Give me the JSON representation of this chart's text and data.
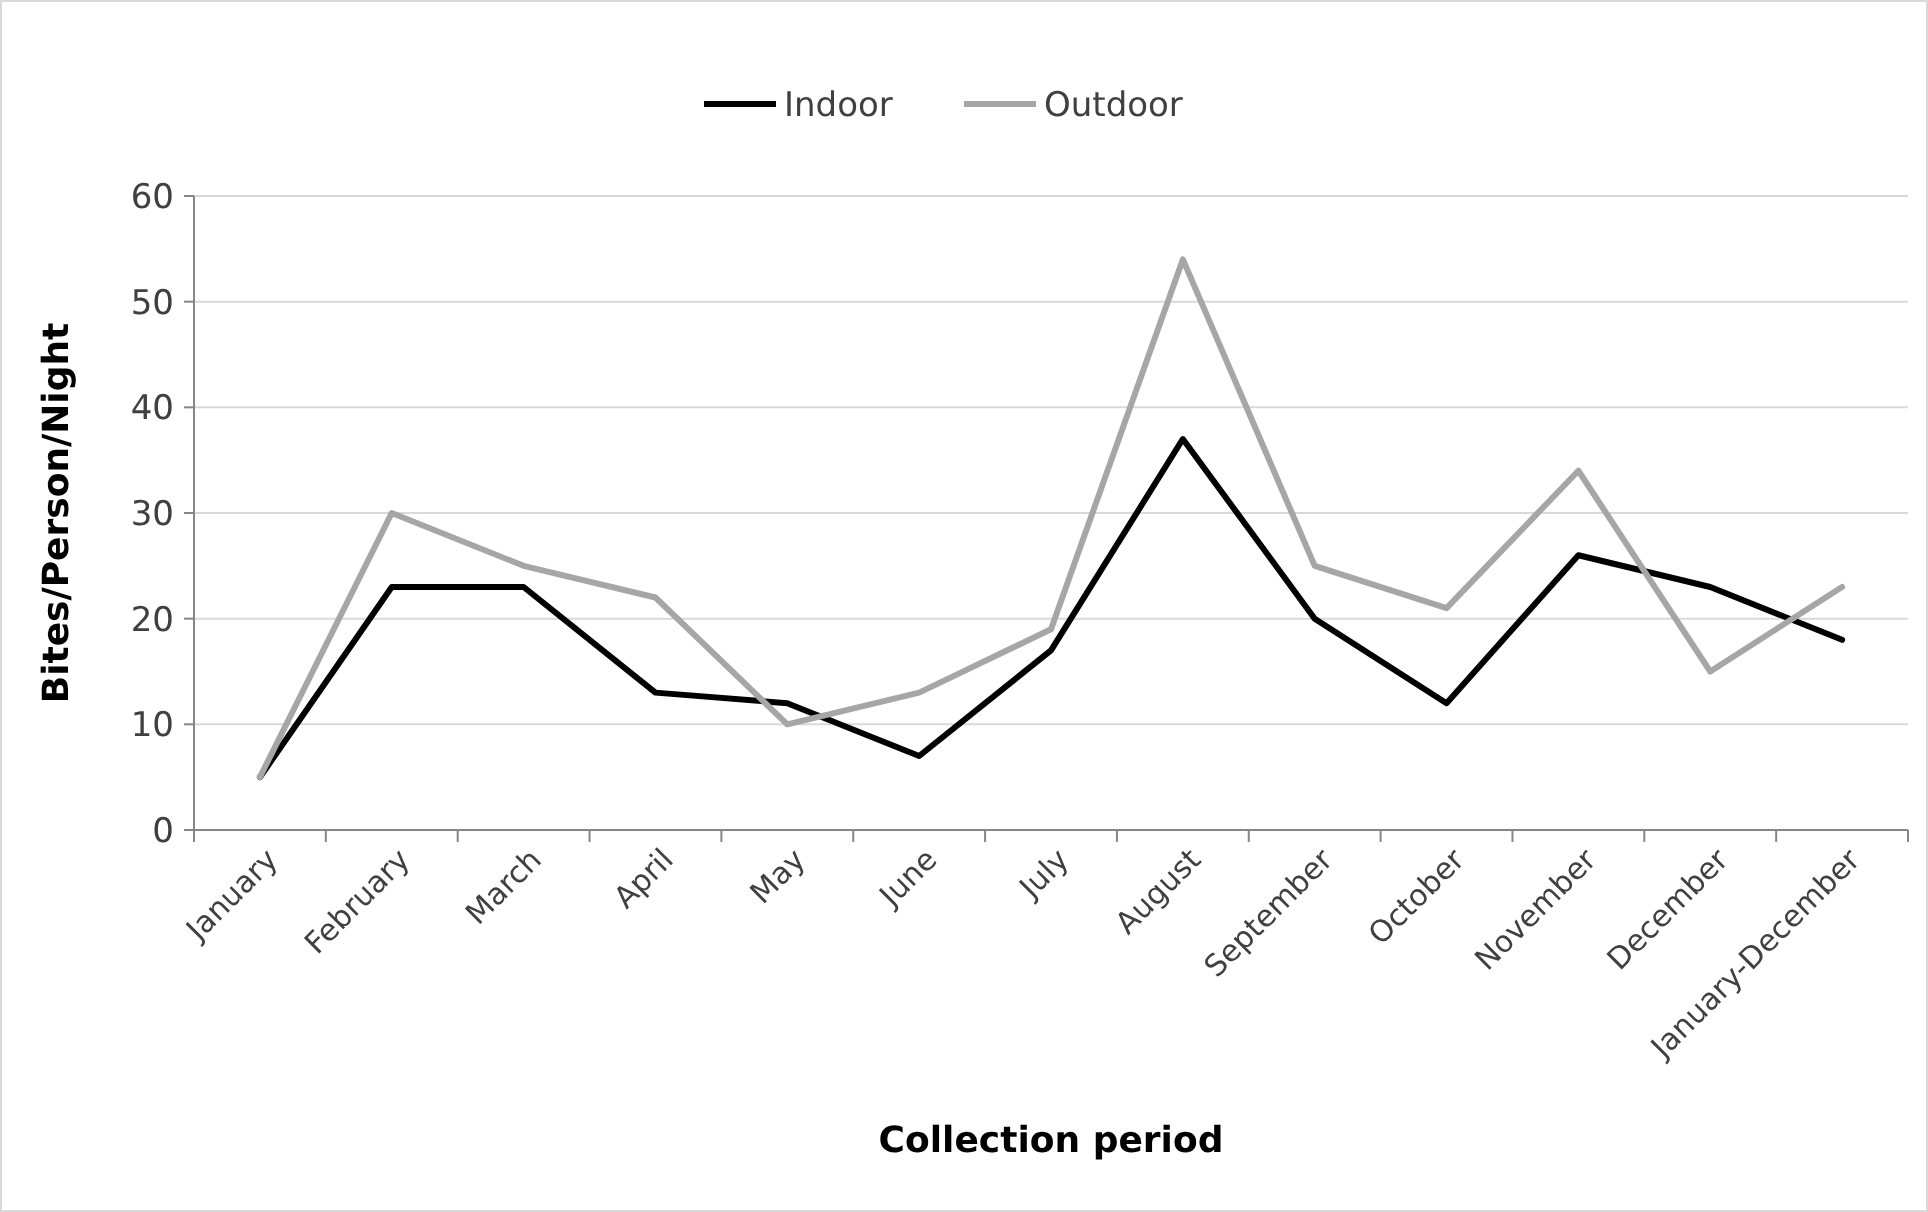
{
  "chart_data": {
    "type": "line",
    "xlabel": "Collection period",
    "ylabel": "Bites/Person/Night",
    "categories": [
      "January",
      "February",
      "March",
      "April",
      "May",
      "June",
      "July",
      "August",
      "September",
      "October",
      "November",
      "December",
      "January-December"
    ],
    "series": [
      {
        "name": "Indoor",
        "color": "#000000",
        "values": [
          5,
          23,
          23,
          13,
          12,
          7,
          17,
          37,
          20,
          12,
          26,
          23,
          18
        ]
      },
      {
        "name": "Outdoor",
        "color": "#a6a6a6",
        "values": [
          5,
          30,
          25,
          22,
          10,
          13,
          19,
          54,
          25,
          21,
          34,
          15,
          23
        ]
      }
    ],
    "ylim": [
      0,
      60
    ],
    "yticks": [
      0,
      10,
      20,
      30,
      40,
      50,
      60
    ],
    "grid": "y",
    "legend": "top",
    "marker": "none",
    "line_style": "solid"
  }
}
